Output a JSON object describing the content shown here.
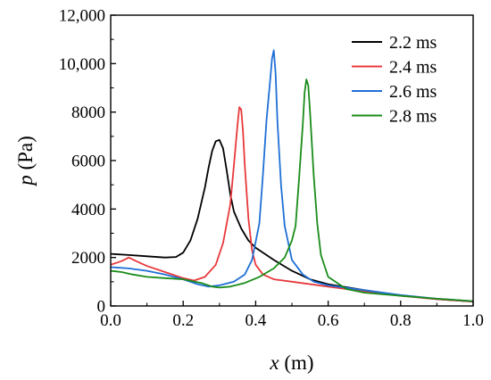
{
  "chart_data": {
    "type": "line",
    "xlabel_var": "x",
    "xlabel_unit": " (m)",
    "ylabel_var": "p",
    "ylabel_unit": " (Pa)",
    "xlim": [
      0,
      1.0
    ],
    "ylim": [
      0,
      12000
    ],
    "x_ticks": [
      0.0,
      0.2,
      0.4,
      0.6,
      0.8,
      1.0
    ],
    "x_tick_labels": [
      "0.0",
      "0.2",
      "0.4",
      "0.6",
      "0.8",
      "1.0"
    ],
    "y_ticks": [
      0,
      2000,
      4000,
      6000,
      8000,
      10000,
      12000
    ],
    "y_tick_labels": [
      "0",
      "2000",
      "4000",
      "6000",
      "8000",
      "10,000",
      "12,000"
    ],
    "grid": false,
    "legend_position": "top-right",
    "series": [
      {
        "name": "2.2 ms",
        "color": "#000000",
        "x": [
          0.0,
          0.05,
          0.1,
          0.15,
          0.18,
          0.2,
          0.22,
          0.24,
          0.26,
          0.27,
          0.28,
          0.29,
          0.3,
          0.31,
          0.32,
          0.33,
          0.34,
          0.36,
          0.38,
          0.4,
          0.45,
          0.5,
          0.55,
          0.6,
          0.7,
          0.8,
          0.9,
          1.0
        ],
        "y": [
          2150,
          2100,
          2050,
          2000,
          2020,
          2200,
          2700,
          3600,
          4900,
          5700,
          6400,
          6800,
          6850,
          6500,
          5600,
          4600,
          3900,
          3200,
          2700,
          2400,
          1900,
          1450,
          1100,
          900,
          650,
          430,
          280,
          180
        ]
      },
      {
        "name": "2.4 ms",
        "color": "#e8393c",
        "x": [
          0.0,
          0.03,
          0.05,
          0.07,
          0.1,
          0.15,
          0.2,
          0.23,
          0.26,
          0.29,
          0.31,
          0.33,
          0.34,
          0.35,
          0.355,
          0.36,
          0.365,
          0.37,
          0.38,
          0.39,
          0.4,
          0.42,
          0.45,
          0.5,
          0.6,
          0.7,
          0.8,
          0.9,
          1.0
        ],
        "y": [
          1700,
          1850,
          2000,
          1850,
          1650,
          1400,
          1150,
          1050,
          1200,
          1700,
          2600,
          4200,
          5800,
          7500,
          8200,
          8100,
          7200,
          5800,
          3600,
          2300,
          1700,
          1300,
          1100,
          1000,
          800,
          600,
          420,
          280,
          180
        ]
      },
      {
        "name": "2.6 ms",
        "color": "#1f6fd6",
        "x": [
          0.0,
          0.05,
          0.1,
          0.15,
          0.2,
          0.24,
          0.27,
          0.3,
          0.34,
          0.37,
          0.39,
          0.41,
          0.42,
          0.43,
          0.44,
          0.445,
          0.45,
          0.455,
          0.46,
          0.47,
          0.48,
          0.5,
          0.53,
          0.56,
          0.6,
          0.7,
          0.8,
          0.9,
          1.0
        ],
        "y": [
          1600,
          1550,
          1450,
          1300,
          1100,
          900,
          800,
          850,
          1000,
          1300,
          1900,
          3400,
          5400,
          7700,
          9300,
          10200,
          10550,
          9600,
          7600,
          5000,
          3300,
          1900,
          1300,
          1000,
          850,
          650,
          450,
          300,
          200
        ]
      },
      {
        "name": "2.8 ms",
        "color": "#1a8c1a",
        "x": [
          0.0,
          0.03,
          0.06,
          0.1,
          0.15,
          0.2,
          0.25,
          0.28,
          0.3,
          0.33,
          0.37,
          0.41,
          0.45,
          0.48,
          0.5,
          0.51,
          0.52,
          0.53,
          0.535,
          0.54,
          0.545,
          0.55,
          0.56,
          0.57,
          0.58,
          0.6,
          0.65,
          0.7,
          0.8,
          0.9,
          1.0
        ],
        "y": [
          1450,
          1400,
          1300,
          1200,
          1150,
          1100,
          950,
          800,
          760,
          800,
          950,
          1200,
          1550,
          2000,
          2700,
          3300,
          5300,
          7500,
          8800,
          9350,
          9100,
          8000,
          5400,
          3400,
          2100,
          1200,
          700,
          550,
          420,
          300,
          200
        ]
      }
    ]
  }
}
